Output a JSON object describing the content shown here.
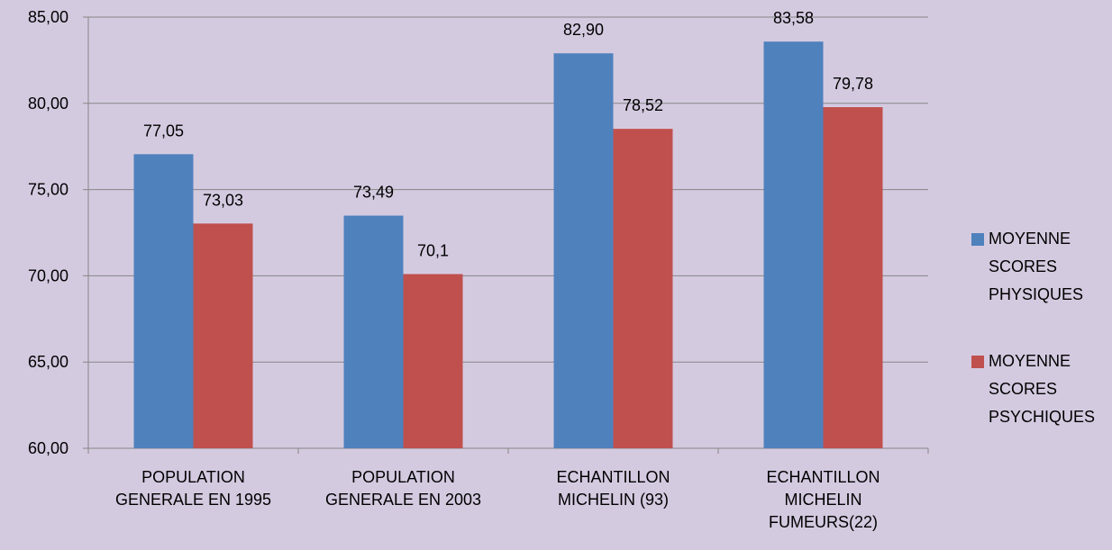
{
  "chart_data": {
    "type": "bar",
    "categories": [
      "POPULATION GENERALE EN 1995",
      "POPULATION GENERALE EN 2003",
      "ECHANTILLON MICHELIN (93)",
      "ECHANTILLON MICHELIN FUMEURS(22)"
    ],
    "series": [
      {
        "name": "MOYENNE SCORES PHYSIQUES",
        "color": "#4f81bd",
        "values": [
          77.05,
          73.49,
          82.9,
          83.58
        ],
        "value_labels": [
          "77,05",
          "73,49",
          "82,90",
          "83,58"
        ]
      },
      {
        "name": "MOYENNE SCORES PSYCHIQUES",
        "color": "#c0504d",
        "values": [
          73.03,
          70.1,
          78.52,
          79.78
        ],
        "value_labels": [
          "73,03",
          "70,1",
          "78,52",
          "79,78"
        ]
      }
    ],
    "ylim": [
      60,
      85
    ],
    "yticks": [
      {
        "value": 60,
        "label": "60,00"
      },
      {
        "value": 65,
        "label": "65,00"
      },
      {
        "value": 70,
        "label": "70,00"
      },
      {
        "value": 75,
        "label": "75,00"
      },
      {
        "value": 80,
        "label": "80,00"
      },
      {
        "value": 85,
        "label": "85,00"
      }
    ],
    "grid": true,
    "legend": "right"
  }
}
